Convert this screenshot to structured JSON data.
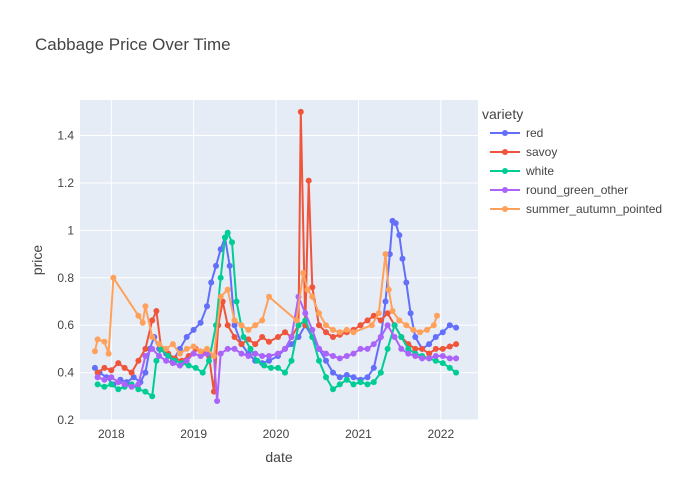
{
  "chart_data": {
    "type": "line",
    "title": "Cabbage Price Over Time",
    "xlabel": "date",
    "ylabel": "price",
    "legend_title": "variety",
    "legend_position": "right",
    "plot_background": "#e5ecf6",
    "grid": true,
    "xlim": [
      "2017-08-15",
      "2022-06-15"
    ],
    "ylim": [
      0.2,
      1.55
    ],
    "x_ticks": [
      "2018",
      "2019",
      "2020",
      "2021",
      "2022"
    ],
    "x_tick_values": [
      "2018-01-01",
      "2019-01-01",
      "2020-01-01",
      "2021-01-01",
      "2022-01-01"
    ],
    "y_ticks": [
      0.2,
      0.4,
      0.6,
      0.8,
      1,
      1.2,
      1.4
    ],
    "series": [
      {
        "name": "red",
        "color": "#636efa",
        "points": [
          [
            "2017-10-20",
            0.42
          ],
          [
            "2017-11-10",
            0.4
          ],
          [
            "2017-12-10",
            0.38
          ],
          [
            "2018-01-10",
            0.35
          ],
          [
            "2018-02-10",
            0.37
          ],
          [
            "2018-03-10",
            0.36
          ],
          [
            "2018-04-10",
            0.38
          ],
          [
            "2018-05-10",
            0.36
          ],
          [
            "2018-06-01",
            0.4
          ],
          [
            "2018-06-20",
            0.5
          ],
          [
            "2018-07-10",
            0.55
          ],
          [
            "2018-08-01",
            0.5
          ],
          [
            "2018-09-01",
            0.48
          ],
          [
            "2018-10-01",
            0.45
          ],
          [
            "2018-11-01",
            0.5
          ],
          [
            "2018-12-01",
            0.55
          ],
          [
            "2019-01-01",
            0.58
          ],
          [
            "2019-02-01",
            0.61
          ],
          [
            "2019-03-01",
            0.68
          ],
          [
            "2019-03-20",
            0.78
          ],
          [
            "2019-04-10",
            0.85
          ],
          [
            "2019-05-01",
            0.92
          ],
          [
            "2019-05-20",
            0.97
          ],
          [
            "2019-06-10",
            0.85
          ],
          [
            "2019-07-01",
            0.6
          ],
          [
            "2019-08-01",
            0.52
          ],
          [
            "2019-09-01",
            0.48
          ],
          [
            "2019-10-01",
            0.45
          ],
          [
            "2019-11-01",
            0.44
          ],
          [
            "2019-12-01",
            0.45
          ],
          [
            "2020-01-10",
            0.47
          ],
          [
            "2020-02-10",
            0.5
          ],
          [
            "2020-03-10",
            0.52
          ],
          [
            "2020-04-10",
            0.55
          ],
          [
            "2020-05-10",
            0.6
          ],
          [
            "2020-06-10",
            0.55
          ],
          [
            "2020-07-10",
            0.5
          ],
          [
            "2020-08-10",
            0.45
          ],
          [
            "2020-09-10",
            0.4
          ],
          [
            "2020-10-10",
            0.38
          ],
          [
            "2020-11-10",
            0.39
          ],
          [
            "2020-12-10",
            0.38
          ],
          [
            "2021-01-10",
            0.37
          ],
          [
            "2021-02-10",
            0.38
          ],
          [
            "2021-03-10",
            0.42
          ],
          [
            "2021-04-10",
            0.55
          ],
          [
            "2021-05-01",
            0.7
          ],
          [
            "2021-05-20",
            0.9
          ],
          [
            "2021-06-01",
            1.04
          ],
          [
            "2021-06-15",
            1.03
          ],
          [
            "2021-07-01",
            0.98
          ],
          [
            "2021-07-15",
            0.88
          ],
          [
            "2021-08-01",
            0.78
          ],
          [
            "2021-08-20",
            0.65
          ],
          [
            "2021-09-10",
            0.55
          ],
          [
            "2021-10-10",
            0.5
          ],
          [
            "2021-11-10",
            0.52
          ],
          [
            "2021-12-10",
            0.55
          ],
          [
            "2022-01-10",
            0.57
          ],
          [
            "2022-02-10",
            0.6
          ],
          [
            "2022-03-10",
            0.59
          ]
        ]
      },
      {
        "name": "savoy",
        "color": "#ef553b",
        "points": [
          [
            "2017-11-01",
            0.4
          ],
          [
            "2017-12-01",
            0.42
          ],
          [
            "2018-01-01",
            0.41
          ],
          [
            "2018-02-01",
            0.44
          ],
          [
            "2018-03-01",
            0.42
          ],
          [
            "2018-04-01",
            0.4
          ],
          [
            "2018-05-01",
            0.45
          ],
          [
            "2018-06-01",
            0.5
          ],
          [
            "2018-07-01",
            0.62
          ],
          [
            "2018-07-20",
            0.66
          ],
          [
            "2018-08-10",
            0.5
          ],
          [
            "2018-09-10",
            0.48
          ],
          [
            "2018-10-10",
            0.46
          ],
          [
            "2018-11-10",
            0.45
          ],
          [
            "2018-12-10",
            0.47
          ],
          [
            "2019-01-10",
            0.5
          ],
          [
            "2019-02-10",
            0.48
          ],
          [
            "2019-03-10",
            0.47
          ],
          [
            "2019-04-01",
            0.32
          ],
          [
            "2019-04-20",
            0.6
          ],
          [
            "2019-05-10",
            0.7
          ],
          [
            "2019-06-01",
            0.6
          ],
          [
            "2019-07-01",
            0.55
          ],
          [
            "2019-08-01",
            0.52
          ],
          [
            "2019-09-01",
            0.54
          ],
          [
            "2019-10-01",
            0.52
          ],
          [
            "2019-11-01",
            0.55
          ],
          [
            "2019-12-01",
            0.53
          ],
          [
            "2020-01-10",
            0.55
          ],
          [
            "2020-02-10",
            0.57
          ],
          [
            "2020-03-10",
            0.55
          ],
          [
            "2020-04-10",
            0.6
          ],
          [
            "2020-04-20",
            1.5
          ],
          [
            "2020-05-10",
            0.6
          ],
          [
            "2020-05-25",
            1.21
          ],
          [
            "2020-06-10",
            0.76
          ],
          [
            "2020-07-10",
            0.6
          ],
          [
            "2020-08-10",
            0.57
          ],
          [
            "2020-09-10",
            0.55
          ],
          [
            "2020-10-10",
            0.56
          ],
          [
            "2020-11-10",
            0.57
          ],
          [
            "2020-12-10",
            0.58
          ],
          [
            "2021-01-10",
            0.6
          ],
          [
            "2021-02-10",
            0.62
          ],
          [
            "2021-03-10",
            0.64
          ],
          [
            "2021-04-10",
            0.62
          ],
          [
            "2021-05-10",
            0.65
          ],
          [
            "2021-06-10",
            0.6
          ],
          [
            "2021-07-10",
            0.55
          ],
          [
            "2021-08-10",
            0.52
          ],
          [
            "2021-09-10",
            0.5
          ],
          [
            "2021-10-10",
            0.5
          ],
          [
            "2021-11-10",
            0.48
          ],
          [
            "2021-12-10",
            0.5
          ],
          [
            "2022-01-10",
            0.5
          ],
          [
            "2022-02-10",
            0.51
          ],
          [
            "2022-03-10",
            0.52
          ]
        ]
      },
      {
        "name": "white",
        "color": "#00cc96",
        "points": [
          [
            "2017-11-01",
            0.35
          ],
          [
            "2017-12-01",
            0.34
          ],
          [
            "2018-01-01",
            0.35
          ],
          [
            "2018-02-01",
            0.33
          ],
          [
            "2018-03-01",
            0.34
          ],
          [
            "2018-04-01",
            0.35
          ],
          [
            "2018-05-01",
            0.33
          ],
          [
            "2018-06-01",
            0.32
          ],
          [
            "2018-07-01",
            0.3
          ],
          [
            "2018-07-20",
            0.45
          ],
          [
            "2018-08-10",
            0.5
          ],
          [
            "2018-09-10",
            0.47
          ],
          [
            "2018-10-10",
            0.45
          ],
          [
            "2018-11-10",
            0.44
          ],
          [
            "2018-12-10",
            0.43
          ],
          [
            "2019-01-10",
            0.42
          ],
          [
            "2019-02-10",
            0.4
          ],
          [
            "2019-03-10",
            0.45
          ],
          [
            "2019-04-10",
            0.6
          ],
          [
            "2019-05-01",
            0.8
          ],
          [
            "2019-05-20",
            0.97
          ],
          [
            "2019-06-01",
            0.99
          ],
          [
            "2019-06-20",
            0.95
          ],
          [
            "2019-07-10",
            0.7
          ],
          [
            "2019-08-10",
            0.55
          ],
          [
            "2019-09-10",
            0.5
          ],
          [
            "2019-10-10",
            0.45
          ],
          [
            "2019-11-10",
            0.43
          ],
          [
            "2019-12-10",
            0.42
          ],
          [
            "2020-01-10",
            0.42
          ],
          [
            "2020-02-10",
            0.4
          ],
          [
            "2020-03-10",
            0.45
          ],
          [
            "2020-04-10",
            0.6
          ],
          [
            "2020-05-10",
            0.62
          ],
          [
            "2020-06-10",
            0.55
          ],
          [
            "2020-07-10",
            0.45
          ],
          [
            "2020-08-10",
            0.38
          ],
          [
            "2020-09-10",
            0.33
          ],
          [
            "2020-10-10",
            0.35
          ],
          [
            "2020-11-10",
            0.37
          ],
          [
            "2020-12-10",
            0.35
          ],
          [
            "2021-01-10",
            0.36
          ],
          [
            "2021-02-10",
            0.35
          ],
          [
            "2021-03-10",
            0.36
          ],
          [
            "2021-04-10",
            0.4
          ],
          [
            "2021-05-10",
            0.5
          ],
          [
            "2021-06-10",
            0.6
          ],
          [
            "2021-07-10",
            0.55
          ],
          [
            "2021-08-10",
            0.5
          ],
          [
            "2021-09-10",
            0.48
          ],
          [
            "2021-10-10",
            0.47
          ],
          [
            "2021-11-10",
            0.46
          ],
          [
            "2021-12-10",
            0.45
          ],
          [
            "2022-01-10",
            0.44
          ],
          [
            "2022-02-10",
            0.42
          ],
          [
            "2022-03-10",
            0.4
          ]
        ]
      },
      {
        "name": "round_green_other",
        "color": "#ab63fa",
        "points": [
          [
            "2017-11-01",
            0.38
          ],
          [
            "2017-12-01",
            0.37
          ],
          [
            "2018-01-01",
            0.38
          ],
          [
            "2018-02-01",
            0.36
          ],
          [
            "2018-03-01",
            0.35
          ],
          [
            "2018-04-01",
            0.34
          ],
          [
            "2018-05-01",
            0.35
          ],
          [
            "2018-06-01",
            0.47
          ],
          [
            "2018-07-01",
            0.5
          ],
          [
            "2018-08-01",
            0.47
          ],
          [
            "2018-09-01",
            0.45
          ],
          [
            "2018-10-01",
            0.44
          ],
          [
            "2018-11-01",
            0.43
          ],
          [
            "2018-12-01",
            0.45
          ],
          [
            "2019-01-01",
            0.48
          ],
          [
            "2019-02-01",
            0.47
          ],
          [
            "2019-03-01",
            0.48
          ],
          [
            "2019-04-01",
            0.47
          ],
          [
            "2019-04-15",
            0.28
          ],
          [
            "2019-05-01",
            0.48
          ],
          [
            "2019-06-01",
            0.5
          ],
          [
            "2019-07-01",
            0.5
          ],
          [
            "2019-08-01",
            0.48
          ],
          [
            "2019-09-01",
            0.47
          ],
          [
            "2019-10-01",
            0.48
          ],
          [
            "2019-11-01",
            0.47
          ],
          [
            "2019-12-01",
            0.47
          ],
          [
            "2020-01-10",
            0.48
          ],
          [
            "2020-02-10",
            0.5
          ],
          [
            "2020-03-10",
            0.55
          ],
          [
            "2020-04-10",
            0.72
          ],
          [
            "2020-05-10",
            0.65
          ],
          [
            "2020-06-10",
            0.58
          ],
          [
            "2020-07-10",
            0.5
          ],
          [
            "2020-08-10",
            0.48
          ],
          [
            "2020-09-10",
            0.47
          ],
          [
            "2020-10-10",
            0.46
          ],
          [
            "2020-11-10",
            0.47
          ],
          [
            "2020-12-10",
            0.48
          ],
          [
            "2021-01-10",
            0.5
          ],
          [
            "2021-02-10",
            0.5
          ],
          [
            "2021-03-10",
            0.52
          ],
          [
            "2021-04-10",
            0.55
          ],
          [
            "2021-05-10",
            0.6
          ],
          [
            "2021-06-10",
            0.55
          ],
          [
            "2021-07-10",
            0.5
          ],
          [
            "2021-08-10",
            0.48
          ],
          [
            "2021-09-10",
            0.47
          ],
          [
            "2021-10-10",
            0.46
          ],
          [
            "2021-11-10",
            0.46
          ],
          [
            "2021-12-10",
            0.47
          ],
          [
            "2022-01-10",
            0.47
          ],
          [
            "2022-02-10",
            0.46
          ],
          [
            "2022-03-10",
            0.46
          ]
        ]
      },
      {
        "name": "summer_autumn_pointed",
        "color": "#ffa15a",
        "points": [
          [
            "2017-10-20",
            0.49
          ],
          [
            "2017-11-01",
            0.54
          ],
          [
            "2017-12-01",
            0.53
          ],
          [
            "2017-12-20",
            0.48
          ],
          [
            "2018-01-10",
            0.8
          ],
          [
            "2018-05-01",
            0.64
          ],
          [
            "2018-05-20",
            0.61
          ],
          [
            "2018-06-01",
            0.68
          ],
          [
            "2018-07-01",
            0.55
          ],
          [
            "2018-08-01",
            0.52
          ],
          [
            "2018-09-01",
            0.5
          ],
          [
            "2018-10-01",
            0.52
          ],
          [
            "2018-11-01",
            0.48
          ],
          [
            "2018-12-01",
            0.5
          ],
          [
            "2019-01-01",
            0.51
          ],
          [
            "2019-02-01",
            0.49
          ],
          [
            "2019-03-01",
            0.5
          ],
          [
            "2019-04-01",
            0.47
          ],
          [
            "2019-05-01",
            0.72
          ],
          [
            "2019-06-01",
            0.75
          ],
          [
            "2019-07-01",
            0.62
          ],
          [
            "2019-08-01",
            0.6
          ],
          [
            "2019-09-01",
            0.58
          ],
          [
            "2019-10-01",
            0.6
          ],
          [
            "2019-11-01",
            0.62
          ],
          [
            "2019-12-01",
            0.72
          ],
          [
            "2020-04-01",
            0.62
          ],
          [
            "2020-05-01",
            0.82
          ],
          [
            "2020-05-20",
            0.75
          ],
          [
            "2020-06-10",
            0.72
          ],
          [
            "2020-07-10",
            0.65
          ],
          [
            "2020-08-10",
            0.6
          ],
          [
            "2020-09-10",
            0.58
          ],
          [
            "2020-10-10",
            0.57
          ],
          [
            "2020-11-10",
            0.58
          ],
          [
            "2020-12-10",
            0.57
          ],
          [
            "2021-03-01",
            0.6
          ],
          [
            "2021-04-01",
            0.65
          ],
          [
            "2021-05-01",
            0.9
          ],
          [
            "2021-05-15",
            0.75
          ],
          [
            "2021-06-01",
            0.66
          ],
          [
            "2021-07-01",
            0.62
          ],
          [
            "2021-08-01",
            0.6
          ],
          [
            "2021-09-01",
            0.58
          ],
          [
            "2021-10-01",
            0.57
          ],
          [
            "2021-11-01",
            0.58
          ],
          [
            "2021-12-01",
            0.6
          ],
          [
            "2021-12-15",
            0.64
          ]
        ]
      }
    ]
  }
}
